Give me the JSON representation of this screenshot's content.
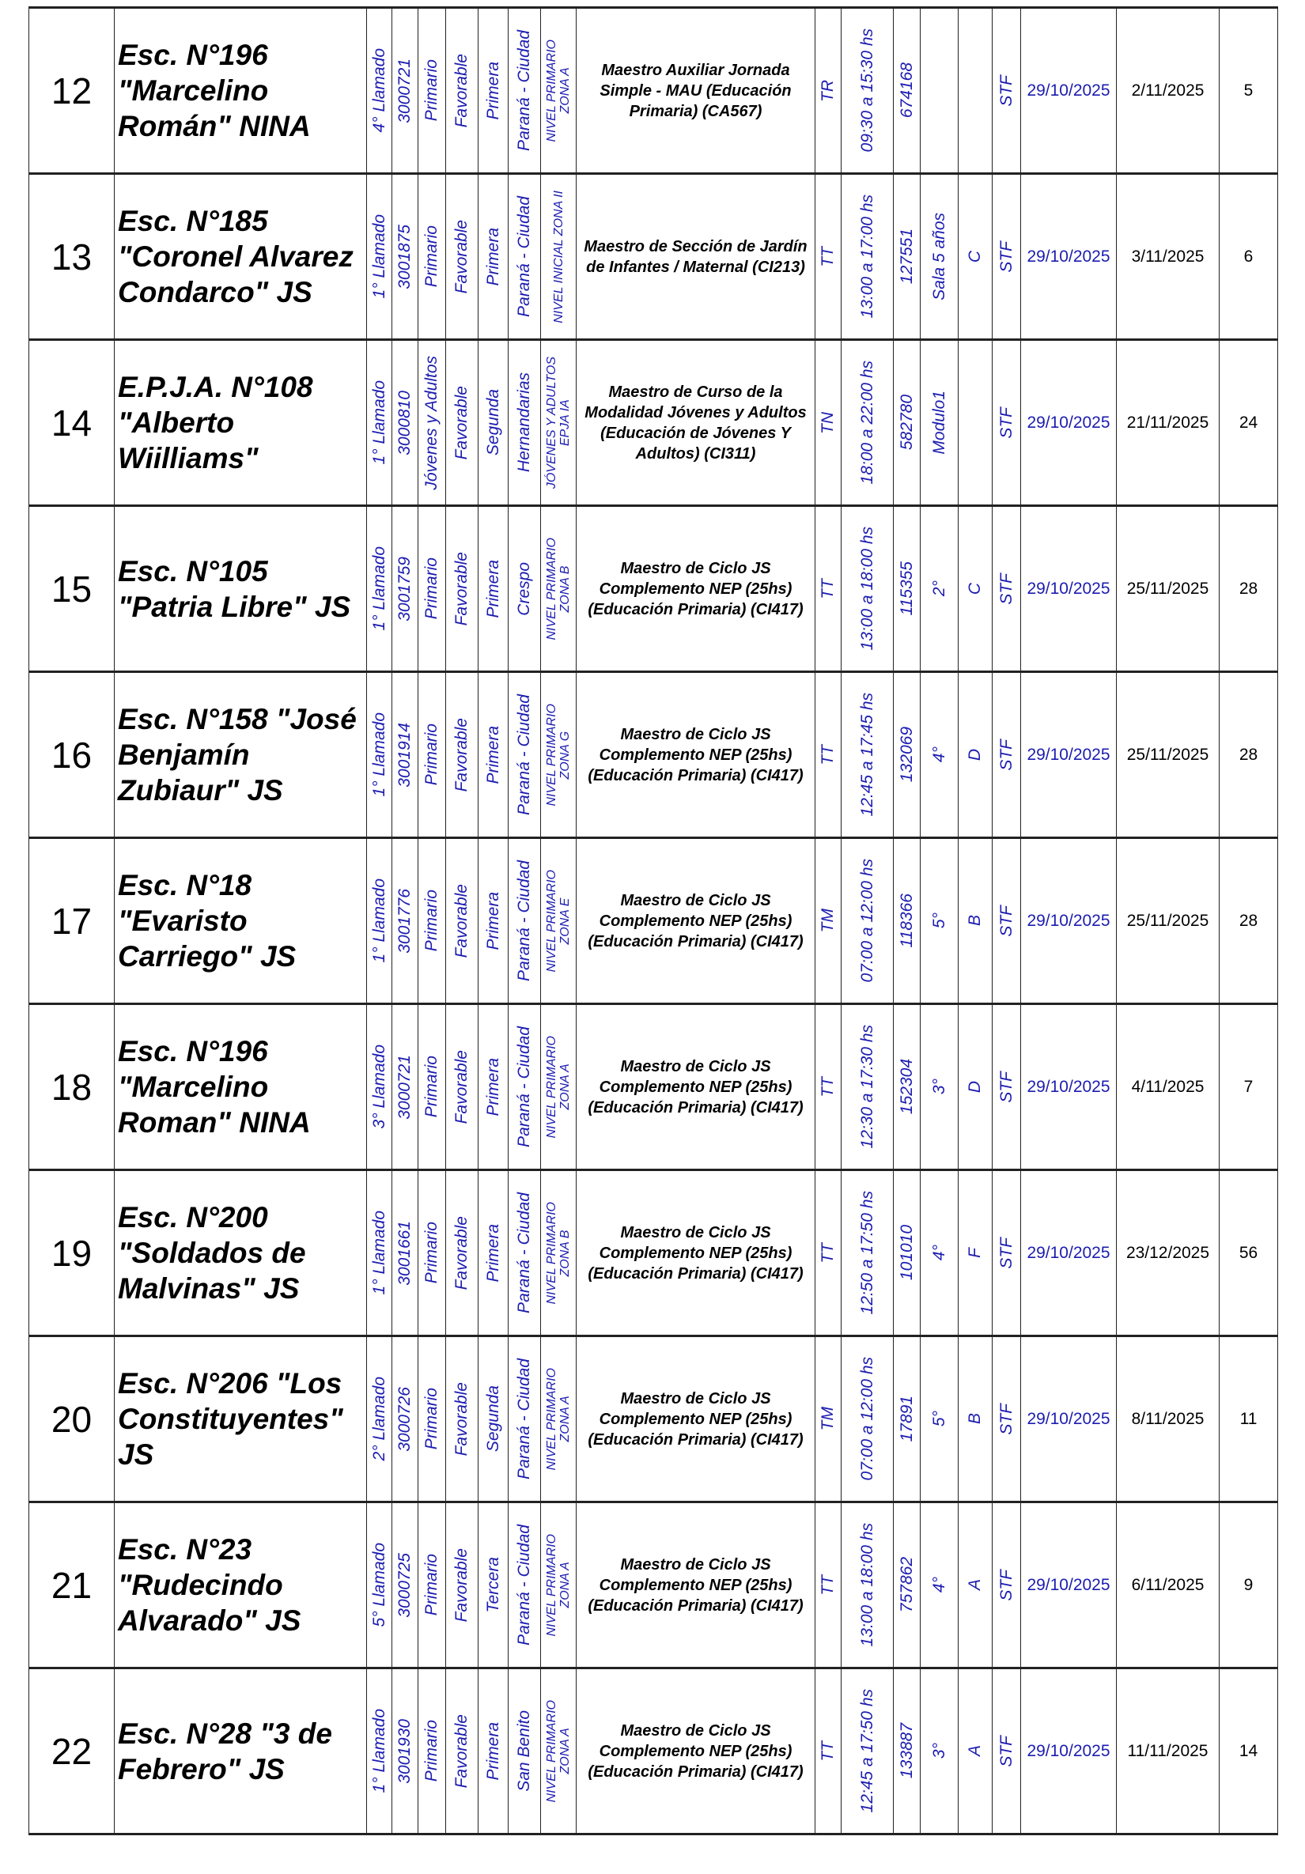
{
  "colors": {
    "blue_text": "#1c1cb0",
    "border": "#222222"
  },
  "rows": [
    {
      "n": "12",
      "school": "Esc. N°196 \"Marcelino Román\" NINA",
      "llamado": "4° Llamado",
      "code": "3000721",
      "level": "Primario",
      "status": "Favorable",
      "category": "Primera",
      "location": "Paraná - Ciudad",
      "zone": "NIVEL PRIMARIO\nZONA A",
      "position": "Maestro Auxiliar Jornada Simple - MAU (Educación Primaria) (CA567)",
      "shift": "TR",
      "hours": "09:30 a 15:30 hs",
      "id": "674168",
      "grade": "",
      "section": "",
      "type": "STF",
      "date_start": "29/10/2025",
      "date_end": "2/11/2025",
      "days": "5"
    },
    {
      "n": "13",
      "school": "Esc. N°185 \"Coronel Alvarez Condarco\" JS",
      "llamado": "1° Llamado",
      "code": "3001875",
      "level": "Primario",
      "status": "Favorable",
      "category": "Primera",
      "location": "Paraná - Ciudad",
      "zone": "NIVEL INICIAL ZONA II",
      "position": "Maestro de Sección de Jardín de Infantes / Maternal (CI213)",
      "shift": "TT",
      "hours": "13:00 a 17:00 hs",
      "id": "127551",
      "grade": "Sala 5 años",
      "section": "C",
      "type": "STF",
      "date_start": "29/10/2025",
      "date_end": "3/11/2025",
      "days": "6"
    },
    {
      "n": "14",
      "school": "E.P.J.A. N°108 \"Alberto Wiilliams\"",
      "llamado": "1° Llamado",
      "code": "3000810",
      "level": "Jóvenes y Adultos",
      "status": "Favorable",
      "category": "Segunda",
      "location": "Hernandarias",
      "zone": "JÓVENES Y ADULTOS\nEPJA IA",
      "position": "Maestro de Curso de la Modalidad Jóvenes y Adultos (Educación de Jóvenes Y Adultos) (CI311)",
      "shift": "TN",
      "hours": "18:00 a 22:00 hs",
      "id": "582780",
      "grade": "Modulo1",
      "section": "",
      "type": "STF",
      "date_start": "29/10/2025",
      "date_end": "21/11/2025",
      "days": "24"
    },
    {
      "n": "15",
      "school": "Esc. N°105 \"Patria Libre\" JS",
      "llamado": "1° Llamado",
      "code": "3001759",
      "level": "Primario",
      "status": "Favorable",
      "category": "Primera",
      "location": "Crespo",
      "zone": "NIVEL PRIMARIO\nZONA B",
      "position": "Maestro de Ciclo JS Complemento NEP (25hs) (Educación Primaria) (CI417)",
      "shift": "TT",
      "hours": "13:00 a 18:00 hs",
      "id": "115355",
      "grade": "2°",
      "section": "C",
      "type": "STF",
      "date_start": "29/10/2025",
      "date_end": "25/11/2025",
      "days": "28"
    },
    {
      "n": "16",
      "school": "Esc. N°158 \"José Benjamín Zubiaur\" JS",
      "llamado": "1° Llamado",
      "code": "3001914",
      "level": "Primario",
      "status": "Favorable",
      "category": "Primera",
      "location": "Paraná - Ciudad",
      "zone": "NIVEL PRIMARIO\nZONA G",
      "position": "Maestro de Ciclo JS Complemento NEP (25hs) (Educación Primaria) (CI417)",
      "shift": "TT",
      "hours": "12:45 a 17:45 hs",
      "id": "132069",
      "grade": "4°",
      "section": "D",
      "type": "STF",
      "date_start": "29/10/2025",
      "date_end": "25/11/2025",
      "days": "28"
    },
    {
      "n": "17",
      "school": "Esc. N°18 \"Evaristo Carriego\" JS",
      "llamado": "1° Llamado",
      "code": "3001776",
      "level": "Primario",
      "status": "Favorable",
      "category": "Primera",
      "location": "Paraná - Ciudad",
      "zone": "NIVEL PRIMARIO\nZONA E",
      "position": "Maestro de Ciclo JS Complemento NEP (25hs) (Educación Primaria) (CI417)",
      "shift": "TM",
      "hours": "07:00 a 12:00 hs",
      "id": "118366",
      "grade": "5°",
      "section": "B",
      "type": "STF",
      "date_start": "29/10/2025",
      "date_end": "25/11/2025",
      "days": "28"
    },
    {
      "n": "18",
      "school": "Esc. N°196 \"Marcelino Roman\" NINA",
      "llamado": "3° Llamado",
      "code": "3000721",
      "level": "Primario",
      "status": "Favorable",
      "category": "Primera",
      "location": "Paraná - Ciudad",
      "zone": "NIVEL PRIMARIO\nZONA A",
      "position": "Maestro de Ciclo JS Complemento NEP (25hs) (Educación Primaria) (CI417)",
      "shift": "TT",
      "hours": "12:30 a 17:30 hs",
      "id": "152304",
      "grade": "3°",
      "section": "D",
      "type": "STF",
      "date_start": "29/10/2025",
      "date_end": "4/11/2025",
      "days": "7"
    },
    {
      "n": "19",
      "school": "Esc. N°200 \"Soldados de Malvinas\" JS",
      "llamado": "1° Llamado",
      "code": "3001661",
      "level": "Primario",
      "status": "Favorable",
      "category": "Primera",
      "location": "Paraná - Ciudad",
      "zone": "NIVEL PRIMARIO\nZONA B",
      "position": "Maestro de Ciclo JS Complemento NEP (25hs) (Educación Primaria) (CI417)",
      "shift": "TT",
      "hours": "12:50 a 17:50 hs",
      "id": "101010",
      "grade": "4°",
      "section": "F",
      "type": "STF",
      "date_start": "29/10/2025",
      "date_end": "23/12/2025",
      "days": "56"
    },
    {
      "n": "20",
      "school": "Esc. N°206 \"Los Constituyentes\" JS",
      "llamado": "2° Llamado",
      "code": "3000726",
      "level": "Primario",
      "status": "Favorable",
      "category": "Segunda",
      "location": "Paraná - Ciudad",
      "zone": "NIVEL PRIMARIO\nZONA A",
      "position": "Maestro de Ciclo JS Complemento NEP (25hs) (Educación Primaria) (CI417)",
      "shift": "TM",
      "hours": "07:00 a 12:00 hs",
      "id": "17891",
      "grade": "5°",
      "section": "B",
      "type": "STF",
      "date_start": "29/10/2025",
      "date_end": "8/11/2025",
      "days": "11"
    },
    {
      "n": "21",
      "school": "Esc. N°23 \"Rudecindo Alvarado\" JS",
      "llamado": "5° Llamado",
      "code": "3000725",
      "level": "Primario",
      "status": "Favorable",
      "category": "Tercera",
      "location": "Paraná - Ciudad",
      "zone": "NIVEL PRIMARIO\nZONA A",
      "position": "Maestro de Ciclo JS Complemento NEP (25hs) (Educación Primaria) (CI417)",
      "shift": "TT",
      "hours": "13:00 a 18:00 hs",
      "id": "757862",
      "grade": "4°",
      "section": "A",
      "type": "STF",
      "date_start": "29/10/2025",
      "date_end": "6/11/2025",
      "days": "9"
    },
    {
      "n": "22",
      "school": "Esc. N°28 \"3 de Febrero\" JS",
      "llamado": "1° Llamado",
      "code": "3001930",
      "level": "Primario",
      "status": "Favorable",
      "category": "Primera",
      "location": "San Benito",
      "zone": "NIVEL PRIMARIO\nZONA A",
      "position": "Maestro de Ciclo JS Complemento NEP (25hs) (Educación Primaria) (CI417)",
      "shift": "TT",
      "hours": "12:45 a 17:50 hs",
      "id": "133887",
      "grade": "3°",
      "section": "A",
      "type": "STF",
      "date_start": "29/10/2025",
      "date_end": "11/11/2025",
      "days": "14"
    }
  ]
}
